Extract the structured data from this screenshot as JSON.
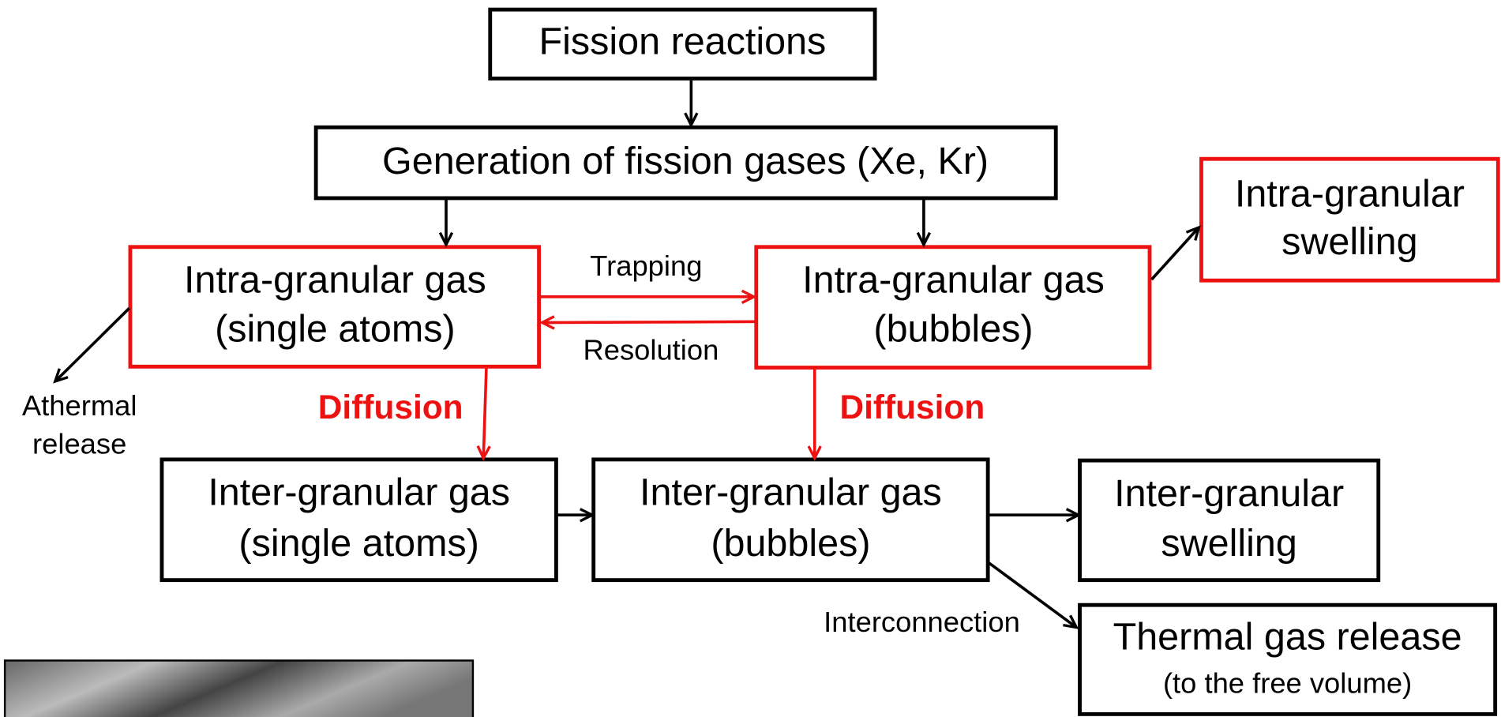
{
  "nodes": [
    {
      "lines": [
        "Fission reactions"
      ]
    },
    {
      "lines": [
        "Generation of fission gases (Xe, Kr)"
      ]
    },
    {
      "lines": [
        "Intra-granular gas",
        "(single atoms)"
      ]
    },
    {
      "lines": [
        "Intra-granular gas",
        "(bubbles)"
      ]
    },
    {
      "lines": [
        "Intra-granular",
        "swelling"
      ]
    },
    {
      "lines": [
        "Inter-granular gas",
        "(single atoms)"
      ]
    },
    {
      "lines": [
        "Inter-granular gas",
        "(bubbles)"
      ]
    },
    {
      "lines": [
        "Inter-granular",
        "swelling"
      ]
    },
    {
      "lines": [
        "Thermal gas release",
        "(to the free volume)"
      ]
    }
  ],
  "edge_labels": {
    "trapping": "Trapping",
    "resolution": "Resolution",
    "diffusion_left": "Diffusion",
    "diffusion_right": "Diffusion",
    "athermal": [
      "Athermal",
      "release"
    ],
    "interconnection": "Interconnection"
  }
}
